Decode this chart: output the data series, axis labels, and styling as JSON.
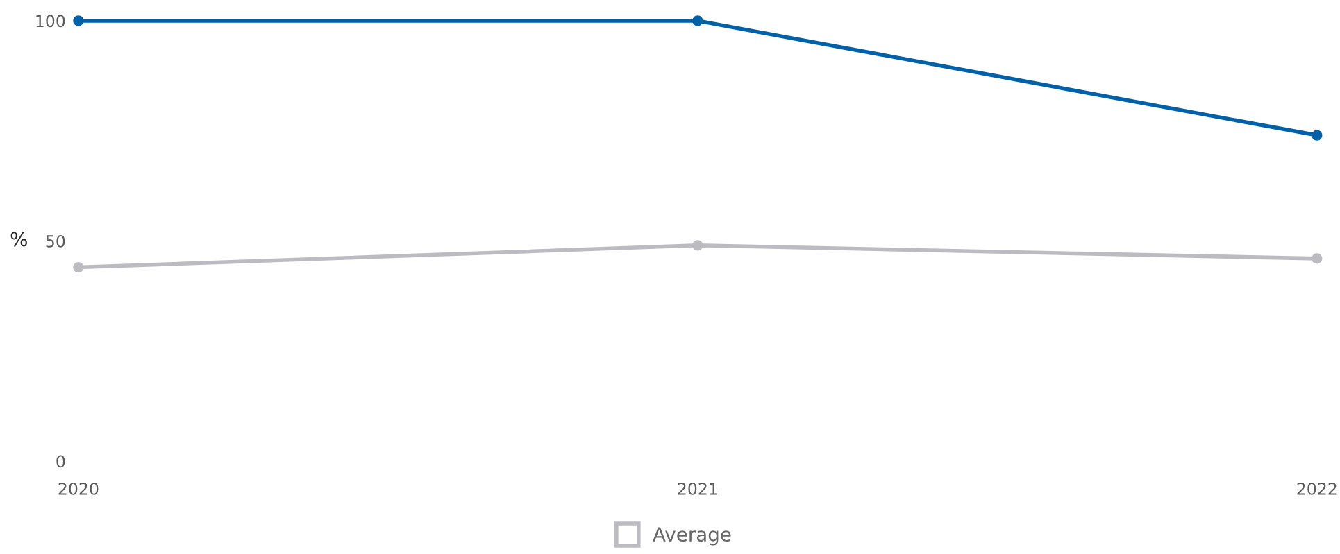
{
  "chart_data": {
    "type": "line",
    "categories": [
      "2020",
      "2021",
      "2022"
    ],
    "series": [
      {
        "color": "#0061a9",
        "values": [
          100,
          100,
          74
        ]
      },
      {
        "name": "Average",
        "color": "#bcbbc1",
        "values": [
          44,
          49,
          46
        ]
      }
    ],
    "ylabel": "%",
    "ylim": [
      0,
      100
    ],
    "yticks": [
      0,
      50,
      100
    ],
    "legend": "bottom",
    "marker": "circle",
    "line_style": "solid"
  }
}
